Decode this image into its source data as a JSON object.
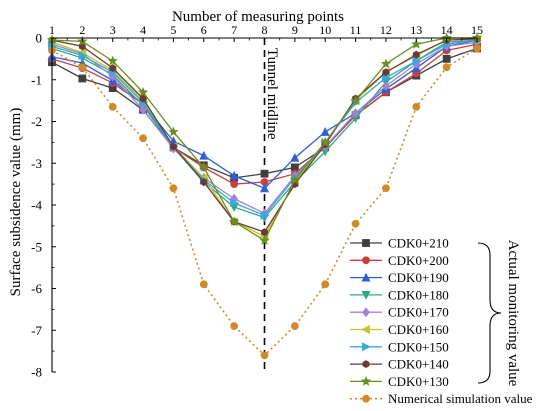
{
  "chart_data": {
    "type": "line",
    "xlabel": "Number of measuring points",
    "ylabel": "Surface subsidence value (mm)",
    "x": [
      1,
      2,
      3,
      4,
      5,
      6,
      7,
      8,
      9,
      10,
      11,
      12,
      13,
      14,
      15
    ],
    "xlim": [
      1,
      15
    ],
    "ylim": [
      -8,
      0
    ],
    "xticks": [
      1,
      2,
      3,
      4,
      5,
      6,
      7,
      8,
      9,
      10,
      11,
      12,
      13,
      14,
      15
    ],
    "yticks": [
      0,
      -1,
      -2,
      -3,
      -4,
      -5,
      -6,
      -7,
      -8
    ],
    "grid": false,
    "legend_position": "bottom-right",
    "annotations": {
      "midline_label": "Tunnel midline",
      "midline_x": 8,
      "bracket_label": "Actual monitoring value"
    },
    "series": [
      {
        "name": "CDK0+210",
        "color": "#404040",
        "marker": "square",
        "dash": "solid",
        "values": [
          -0.58,
          -0.97,
          -1.2,
          -1.72,
          -2.62,
          -3.05,
          -3.35,
          -3.25,
          -3.1,
          -2.62,
          -1.85,
          -1.3,
          -0.9,
          -0.5,
          -0.25
        ]
      },
      {
        "name": "CDK0+200",
        "color": "#c8403c",
        "marker": "circle",
        "dash": "solid",
        "values": [
          -0.5,
          -0.72,
          -1.08,
          -1.58,
          -2.62,
          -3.1,
          -3.5,
          -3.45,
          -3.25,
          -2.6,
          -1.85,
          -1.3,
          -0.85,
          -0.3,
          -0.15
        ]
      },
      {
        "name": "CDK0+190",
        "color": "#2e5fd6",
        "marker": "triangle",
        "dash": "solid",
        "values": [
          -0.45,
          -0.6,
          -1.02,
          -1.58,
          -2.47,
          -2.82,
          -3.3,
          -3.6,
          -2.87,
          -2.25,
          -1.8,
          -1.22,
          -0.72,
          -0.2,
          -0.05
        ]
      },
      {
        "name": "CDK0+180",
        "color": "#2fa87a",
        "marker": "tri-down",
        "dash": "solid",
        "values": [
          -0.25,
          -0.48,
          -0.88,
          -1.62,
          -2.62,
          -3.45,
          -4.05,
          -4.3,
          -3.45,
          -2.72,
          -1.92,
          -1.05,
          -0.55,
          -0.1,
          -0.05
        ]
      },
      {
        "name": "CDK0+170",
        "color": "#a382d6",
        "marker": "diamond",
        "dash": "solid",
        "values": [
          -0.15,
          -0.38,
          -0.92,
          -1.72,
          -2.65,
          -3.35,
          -3.85,
          -4.2,
          -3.3,
          -2.6,
          -1.8,
          -1.15,
          -0.62,
          -0.2,
          -0.1
        ]
      },
      {
        "name": "CDK0+160",
        "color": "#c2c61e",
        "marker": "tri-left",
        "dash": "solid",
        "values": [
          -0.1,
          -0.35,
          -0.78,
          -1.5,
          -2.6,
          -3.35,
          -4.4,
          -4.75,
          -3.45,
          -2.5,
          -1.5,
          -0.82,
          -0.42,
          -0.05,
          -0.02
        ]
      },
      {
        "name": "CDK0+150",
        "color": "#3aa7e0",
        "marker": "tri-right",
        "dash": "solid",
        "values": [
          -0.2,
          -0.42,
          -0.82,
          -1.55,
          -2.6,
          -3.4,
          -3.95,
          -4.25,
          -3.35,
          -2.5,
          -1.55,
          -0.95,
          -0.55,
          -0.15,
          -0.05
        ]
      },
      {
        "name": "CDK0+140",
        "color": "#6b3a36",
        "marker": "hexagon",
        "dash": "solid",
        "values": [
          -0.05,
          -0.2,
          -0.72,
          -1.45,
          -2.6,
          -3.45,
          -4.4,
          -4.65,
          -3.5,
          -2.55,
          -1.45,
          -0.82,
          -0.4,
          -0.05,
          -0.02
        ]
      },
      {
        "name": "CDK0+130",
        "color": "#6b8e23",
        "marker": "star",
        "dash": "solid",
        "values": [
          -0.05,
          -0.08,
          -0.55,
          -1.3,
          -2.25,
          -3.1,
          -4.4,
          -4.85,
          -3.4,
          -2.5,
          -1.5,
          -0.62,
          -0.15,
          0.0,
          0.0
        ]
      },
      {
        "name": "Numerical simulation value",
        "color": "#d18a2a",
        "marker": "circle-filled",
        "dash": "dotted",
        "values": [
          -0.3,
          -0.7,
          -1.65,
          -2.4,
          -3.6,
          -5.9,
          -6.9,
          -7.6,
          -6.9,
          -5.9,
          -4.45,
          -3.6,
          -1.65,
          -0.7,
          -0.25
        ]
      }
    ]
  }
}
